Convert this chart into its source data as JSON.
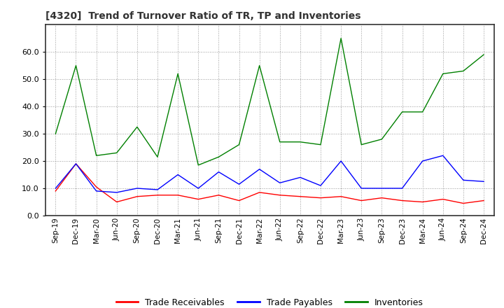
{
  "title": "[4320]  Trend of Turnover Ratio of TR, TP and Inventories",
  "ylim": [
    0,
    70
  ],
  "yticks": [
    0,
    10,
    20,
    30,
    40,
    50,
    60
  ],
  "legend_labels": [
    "Trade Receivables",
    "Trade Payables",
    "Inventories"
  ],
  "line_colors": [
    "#ff0000",
    "#0000ff",
    "#008000"
  ],
  "x_labels": [
    "Sep-19",
    "Dec-19",
    "Mar-20",
    "Jun-20",
    "Sep-20",
    "Dec-20",
    "Mar-21",
    "Jun-21",
    "Sep-21",
    "Dec-21",
    "Mar-22",
    "Jun-22",
    "Sep-22",
    "Dec-22",
    "Mar-23",
    "Jun-23",
    "Sep-23",
    "Dec-23",
    "Mar-24",
    "Jun-24",
    "Sep-24",
    "Dec-24"
  ],
  "trade_receivables": [
    9.0,
    19.0,
    10.5,
    5.0,
    7.0,
    7.5,
    7.5,
    6.0,
    7.5,
    5.5,
    8.5,
    7.5,
    7.0,
    6.5,
    7.0,
    5.5,
    6.5,
    5.5,
    5.0,
    6.0,
    4.5,
    5.5
  ],
  "trade_payables": [
    10.0,
    19.0,
    9.0,
    8.5,
    10.0,
    9.5,
    15.0,
    10.0,
    16.0,
    11.5,
    17.0,
    12.0,
    14.0,
    11.0,
    20.0,
    10.0,
    10.0,
    10.0,
    20.0,
    22.0,
    13.0,
    12.5
  ],
  "inventories": [
    30.0,
    55.0,
    22.0,
    23.0,
    32.5,
    21.5,
    52.0,
    18.5,
    21.5,
    26.0,
    55.0,
    27.0,
    27.0,
    26.0,
    65.0,
    26.0,
    28.0,
    38.0,
    38.0,
    52.0,
    53.0,
    59.0
  ]
}
